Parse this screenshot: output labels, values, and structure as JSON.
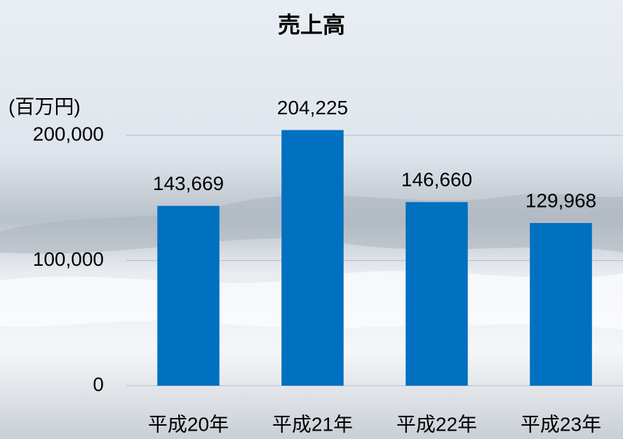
{
  "chart_data": {
    "type": "bar",
    "title": "売上高",
    "y_label": "(百万円)",
    "categories": [
      "平成20年",
      "平成21年",
      "平成22年",
      "平成23年"
    ],
    "values": [
      143669,
      204225,
      146660,
      129968
    ],
    "value_labels": [
      "143,669",
      "204,225",
      "146,660",
      "129,968"
    ],
    "color": "#0070c0",
    "ylim": [
      0,
      200000
    ],
    "yticks": [
      0,
      {
        "value": 100000,
        "label": "100,000"
      },
      {
        "value": 200000,
        "label": "200,000"
      }
    ],
    "grid": true
  }
}
